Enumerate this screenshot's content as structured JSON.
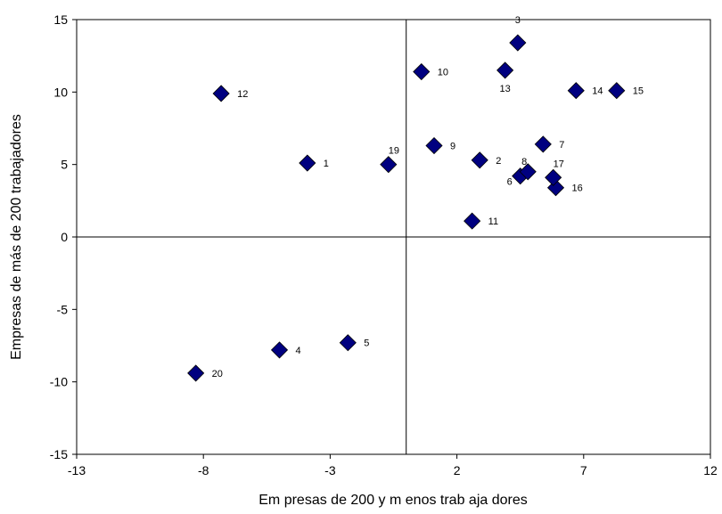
{
  "chart_data": {
    "type": "scatter",
    "title": "",
    "xlabel": "Em presas de 200 y m enos trab aja dores",
    "ylabel": "Empresas de más de 200 trabajadores",
    "xlim": [
      -13,
      12
    ],
    "ylim": [
      -15,
      15
    ],
    "xticks": [
      -13,
      -8,
      -3,
      2,
      7,
      12
    ],
    "yticks": [
      -15,
      -10,
      -5,
      0,
      5,
      10,
      15
    ],
    "grid": false,
    "legend": "none",
    "reference_lines": {
      "x": 0,
      "y": 0
    },
    "marker": {
      "shape": "diamond",
      "color": "#000080"
    },
    "points": [
      {
        "label": "1",
        "x": -3.9,
        "y": 5.1
      },
      {
        "label": "2",
        "x": 2.9,
        "y": 5.3
      },
      {
        "label": "3",
        "x": 4.4,
        "y": 13.4
      },
      {
        "label": "4",
        "x": -5.0,
        "y": -7.8
      },
      {
        "label": "5",
        "x": -2.3,
        "y": -7.3
      },
      {
        "label": "6",
        "x": 4.5,
        "y": 4.2
      },
      {
        "label": "7",
        "x": 5.4,
        "y": 6.4
      },
      {
        "label": "8",
        "x": 4.8,
        "y": 4.5
      },
      {
        "label": "9",
        "x": 1.1,
        "y": 6.3
      },
      {
        "label": "10",
        "x": 0.6,
        "y": 11.4
      },
      {
        "label": "11",
        "x": 2.6,
        "y": 1.1
      },
      {
        "label": "12",
        "x": -7.3,
        "y": 9.9
      },
      {
        "label": "13",
        "x": 3.9,
        "y": 11.5
      },
      {
        "label": "14",
        "x": 6.7,
        "y": 10.1
      },
      {
        "label": "15",
        "x": 8.3,
        "y": 10.1
      },
      {
        "label": "16",
        "x": 5.9,
        "y": 3.4
      },
      {
        "label": "17",
        "x": 5.8,
        "y": 4.1
      },
      {
        "label": "19",
        "x": -0.7,
        "y": 5.0
      },
      {
        "label": "20",
        "x": -8.3,
        "y": -9.4
      }
    ]
  }
}
